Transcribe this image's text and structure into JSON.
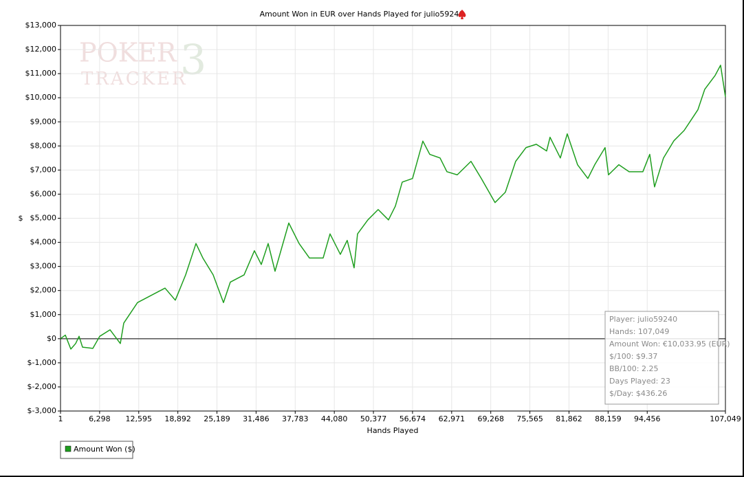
{
  "chart_data": {
    "type": "line",
    "title": "Amount Won in EUR over Hands Played for julio59240",
    "watermark": [
      "POKER",
      "TRACKER",
      "3"
    ],
    "y_label": "$",
    "x_label": "Hands Played",
    "xlim": [
      1,
      107049
    ],
    "xticks": [
      1,
      {
        "value": 6298,
        "label": "6,298"
      },
      {
        "value": 12595,
        "label": "12,595"
      },
      {
        "value": 18892,
        "label": "18,892"
      },
      {
        "value": 25189,
        "label": "25,189"
      },
      {
        "value": 31486,
        "label": "31,486"
      },
      {
        "value": 37783,
        "label": "37,783"
      },
      {
        "value": 44080,
        "label": "44,080"
      },
      {
        "value": 50377,
        "label": "50,377"
      },
      {
        "value": 56674,
        "label": "56,674"
      },
      {
        "value": 62971,
        "label": "62,971"
      },
      {
        "value": 69268,
        "label": "69,268"
      },
      {
        "value": 75565,
        "label": "75,565"
      },
      {
        "value": 81862,
        "label": "81,862"
      },
      {
        "value": 88159,
        "label": "88,159"
      },
      {
        "value": 94456,
        "label": "94,456"
      },
      {
        "value": 107049,
        "label": "107,049"
      }
    ],
    "ylim": [
      -3000,
      13000
    ],
    "yticks": [
      {
        "value": -3000,
        "label": "$-3,000"
      },
      {
        "value": -2000,
        "label": "$-2,000"
      },
      {
        "value": -1000,
        "label": "$-1,000"
      },
      {
        "value": 0,
        "label": "$0"
      },
      {
        "value": 1000,
        "label": "$1,000"
      },
      {
        "value": 2000,
        "label": "$2,000"
      },
      {
        "value": 3000,
        "label": "$3,000"
      },
      {
        "value": 4000,
        "label": "$4,000"
      },
      {
        "value": 5000,
        "label": "$5,000"
      },
      {
        "value": 6000,
        "label": "$6,000"
      },
      {
        "value": 7000,
        "label": "$7,000"
      },
      {
        "value": 8000,
        "label": "$8,000"
      },
      {
        "value": 9000,
        "label": "$9,000"
      },
      {
        "value": 10000,
        "label": "$10,000"
      },
      {
        "value": 11000,
        "label": "$11,000"
      },
      {
        "value": 12000,
        "label": "$12,000"
      },
      {
        "value": 13000,
        "label": "$13,000"
      }
    ],
    "grid": true,
    "legend": "bottom-left",
    "x": [
      1,
      776,
      1661,
      2436,
      2990,
      3544,
      5204,
      6311,
      7972,
      9631,
      10185,
      12399,
      14613,
      16827,
      18487,
      20147,
      21808,
      22915,
      24575,
      26236,
      27342,
      29556,
      31216,
      32323,
      33430,
      34537,
      36751,
      38411,
      40072,
      42285,
      43392,
      45052,
      46159,
      47266,
      47820,
      49480,
      51141,
      52801,
      53908,
      55015,
      56675,
      58336,
      59443,
      61103,
      62210,
      63870,
      66084,
      67744,
      69958,
      71618,
      73278,
      74939,
      76599,
      78260,
      78813,
      80473,
      81580,
      83240,
      84901,
      86008,
      87668,
      88221,
      89882,
      91542,
      93756,
      94863,
      95638,
      97077,
      98737,
      100398,
      101505,
      102612,
      103719,
      105379,
      106265,
      107049
    ],
    "series": [
      {
        "name": "Amount Won ($)",
        "color": "#1e9e1e",
        "values": [
          0,
          150,
          -430,
          -200,
          100,
          -350,
          -400,
          100,
          370,
          -200,
          650,
          1500,
          1800,
          2100,
          1600,
          2650,
          3950,
          3350,
          2650,
          1500,
          2350,
          2650,
          3650,
          3080,
          3950,
          2800,
          4800,
          3950,
          3350,
          3350,
          4350,
          3500,
          4080,
          2940,
          4350,
          4930,
          5360,
          4930,
          5500,
          6500,
          6650,
          8200,
          7650,
          7500,
          6930,
          6800,
          7360,
          6650,
          5650,
          6080,
          7360,
          7930,
          8070,
          7790,
          8360,
          7500,
          8500,
          7220,
          6650,
          7220,
          7930,
          6800,
          7220,
          6930,
          6930,
          7650,
          6300,
          7500,
          8210,
          8640,
          9070,
          9500,
          10350,
          10920,
          11350,
          10034
        ]
      }
    ],
    "info_box": [
      "Player: julio59240",
      "Hands: 107,049",
      "Amount Won: €10,033.95 (EUR)",
      "$/100: $9.37",
      "BB/100: 2.25",
      "Days Played: 23",
      "$/Day: $436.26"
    ]
  }
}
